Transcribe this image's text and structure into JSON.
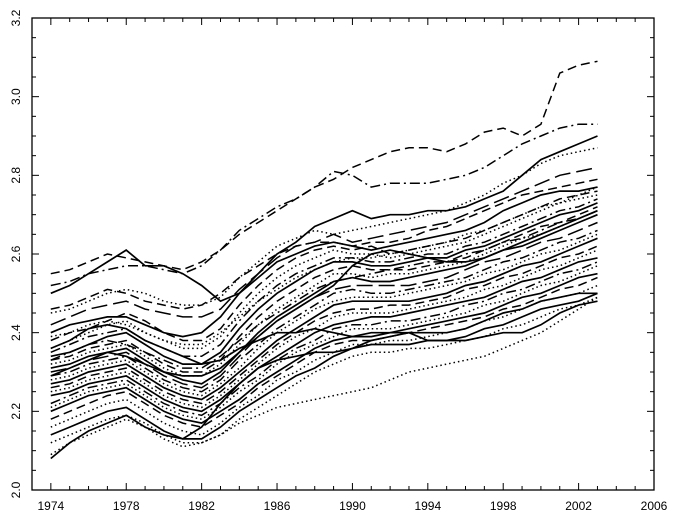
{
  "chart_data": {
    "type": "line",
    "title": "",
    "xlabel": "",
    "ylabel": "",
    "xlim": [
      1973,
      2006
    ],
    "ylim": [
      2.0,
      3.2
    ],
    "x_ticks": [
      "1974",
      "1978",
      "1982",
      "1986",
      "1990",
      "1994",
      "1998",
      "2002",
      "2006"
    ],
    "y_ticks": [
      "2.0",
      "2.2",
      "2.4",
      "2.6",
      "2.8",
      "3.0",
      "3.2"
    ],
    "x": [
      1974,
      1975,
      1976,
      1977,
      1978,
      1979,
      1980,
      1981,
      1982,
      1983,
      1984,
      1985,
      1986,
      1987,
      1988,
      1989,
      1990,
      1991,
      1992,
      1993,
      1994,
      1995,
      1996,
      1997,
      1998,
      1999,
      2000,
      2001,
      2002,
      2003
    ],
    "grid": false,
    "legend": "none",
    "series": [
      {
        "style": "dash",
        "values": [
          2.55,
          2.56,
          2.58,
          2.6,
          2.59,
          2.58,
          2.57,
          2.56,
          2.58,
          2.61,
          2.65,
          2.68,
          2.71,
          2.74,
          2.77,
          2.79,
          2.82,
          2.84,
          2.86,
          2.87,
          2.87,
          2.86,
          2.88,
          2.91,
          2.92,
          2.9,
          2.93,
          3.06,
          3.08,
          3.09
        ]
      },
      {
        "style": "dashdot",
        "values": [
          2.52,
          2.53,
          2.55,
          2.56,
          2.57,
          2.57,
          2.56,
          2.55,
          2.57,
          2.61,
          2.66,
          2.69,
          2.72,
          2.74,
          2.77,
          2.81,
          2.8,
          2.77,
          2.78,
          2.78,
          2.78,
          2.79,
          2.8,
          2.82,
          2.85,
          2.88,
          2.9,
          2.92,
          2.93,
          2.93
        ]
      },
      {
        "style": "solid",
        "values": [
          2.5,
          2.52,
          2.55,
          2.58,
          2.61,
          2.57,
          2.57,
          2.55,
          2.52,
          2.48,
          2.5,
          2.55,
          2.6,
          2.63,
          2.67,
          2.69,
          2.71,
          2.69,
          2.7,
          2.7,
          2.71,
          2.71,
          2.72,
          2.74,
          2.76,
          2.8,
          2.84,
          2.86,
          2.88,
          2.9
        ]
      },
      {
        "style": "dot",
        "values": [
          2.45,
          2.46,
          2.48,
          2.5,
          2.51,
          2.5,
          2.48,
          2.47,
          2.47,
          2.49,
          2.54,
          2.58,
          2.62,
          2.64,
          2.66,
          2.65,
          2.66,
          2.67,
          2.68,
          2.69,
          2.7,
          2.71,
          2.73,
          2.75,
          2.78,
          2.8,
          2.83,
          2.85,
          2.86,
          2.87
        ]
      },
      {
        "style": "longdash",
        "values": [
          2.42,
          2.44,
          2.46,
          2.47,
          2.48,
          2.46,
          2.45,
          2.44,
          2.44,
          2.46,
          2.51,
          2.55,
          2.59,
          2.62,
          2.63,
          2.65,
          2.63,
          2.64,
          2.65,
          2.66,
          2.67,
          2.68,
          2.7,
          2.72,
          2.74,
          2.76,
          2.78,
          2.8,
          2.81,
          2.82
        ]
      },
      {
        "style": "solid",
        "values": [
          2.4,
          2.42,
          2.43,
          2.44,
          2.44,
          2.42,
          2.4,
          2.39,
          2.4,
          2.44,
          2.5,
          2.54,
          2.58,
          2.6,
          2.62,
          2.63,
          2.62,
          2.61,
          2.62,
          2.63,
          2.64,
          2.65,
          2.66,
          2.68,
          2.71,
          2.73,
          2.75,
          2.76,
          2.76,
          2.77
        ]
      },
      {
        "style": "dash",
        "values": [
          2.38,
          2.4,
          2.41,
          2.43,
          2.45,
          2.43,
          2.4,
          2.38,
          2.38,
          2.41,
          2.47,
          2.52,
          2.56,
          2.59,
          2.61,
          2.62,
          2.61,
          2.62,
          2.6,
          2.61,
          2.62,
          2.63,
          2.64,
          2.66,
          2.68,
          2.7,
          2.72,
          2.74,
          2.75,
          2.76
        ]
      },
      {
        "style": "dot",
        "values": [
          2.36,
          2.38,
          2.4,
          2.42,
          2.43,
          2.4,
          2.38,
          2.36,
          2.36,
          2.39,
          2.45,
          2.5,
          2.54,
          2.57,
          2.59,
          2.61,
          2.6,
          2.6,
          2.59,
          2.6,
          2.61,
          2.62,
          2.63,
          2.65,
          2.67,
          2.69,
          2.71,
          2.73,
          2.74,
          2.75
        ]
      },
      {
        "style": "dashdot",
        "values": [
          2.35,
          2.37,
          2.39,
          2.4,
          2.41,
          2.38,
          2.36,
          2.34,
          2.34,
          2.37,
          2.43,
          2.48,
          2.52,
          2.55,
          2.57,
          2.59,
          2.59,
          2.58,
          2.58,
          2.59,
          2.6,
          2.6,
          2.62,
          2.63,
          2.65,
          2.67,
          2.69,
          2.71,
          2.72,
          2.74
        ]
      },
      {
        "style": "solid",
        "values": [
          2.34,
          2.35,
          2.37,
          2.39,
          2.4,
          2.37,
          2.34,
          2.32,
          2.32,
          2.35,
          2.41,
          2.46,
          2.5,
          2.53,
          2.56,
          2.58,
          2.58,
          2.57,
          2.57,
          2.58,
          2.59,
          2.59,
          2.61,
          2.62,
          2.64,
          2.66,
          2.68,
          2.7,
          2.71,
          2.73
        ]
      },
      {
        "style": "dash",
        "values": [
          2.33,
          2.34,
          2.36,
          2.37,
          2.38,
          2.35,
          2.32,
          2.3,
          2.3,
          2.33,
          2.39,
          2.44,
          2.48,
          2.51,
          2.54,
          2.56,
          2.57,
          2.56,
          2.56,
          2.56,
          2.57,
          2.58,
          2.59,
          2.61,
          2.63,
          2.65,
          2.67,
          2.68,
          2.7,
          2.72
        ]
      },
      {
        "style": "dot",
        "values": [
          2.32,
          2.33,
          2.35,
          2.36,
          2.37,
          2.34,
          2.31,
          2.29,
          2.29,
          2.32,
          2.37,
          2.42,
          2.46,
          2.49,
          2.52,
          2.55,
          2.55,
          2.54,
          2.55,
          2.55,
          2.56,
          2.57,
          2.58,
          2.6,
          2.62,
          2.64,
          2.65,
          2.67,
          2.69,
          2.71
        ]
      },
      {
        "style": "solid",
        "values": [
          2.31,
          2.32,
          2.34,
          2.35,
          2.36,
          2.33,
          2.3,
          2.28,
          2.27,
          2.3,
          2.35,
          2.4,
          2.44,
          2.47,
          2.5,
          2.53,
          2.54,
          2.53,
          2.53,
          2.54,
          2.55,
          2.56,
          2.57,
          2.59,
          2.61,
          2.62,
          2.64,
          2.66,
          2.68,
          2.7
        ]
      },
      {
        "style": "longdash",
        "values": [
          2.3,
          2.31,
          2.33,
          2.34,
          2.35,
          2.32,
          2.29,
          2.27,
          2.26,
          2.29,
          2.34,
          2.39,
          2.43,
          2.46,
          2.49,
          2.51,
          2.52,
          2.52,
          2.52,
          2.52,
          2.53,
          2.54,
          2.56,
          2.58,
          2.59,
          2.61,
          2.63,
          2.64,
          2.66,
          2.68
        ]
      },
      {
        "style": "dashdot",
        "values": [
          2.29,
          2.3,
          2.32,
          2.33,
          2.34,
          2.31,
          2.28,
          2.26,
          2.25,
          2.28,
          2.33,
          2.37,
          2.41,
          2.44,
          2.47,
          2.5,
          2.51,
          2.5,
          2.5,
          2.51,
          2.52,
          2.53,
          2.54,
          2.56,
          2.58,
          2.59,
          2.61,
          2.63,
          2.64,
          2.66
        ]
      },
      {
        "style": "dot",
        "values": [
          2.28,
          2.29,
          2.31,
          2.32,
          2.33,
          2.3,
          2.27,
          2.25,
          2.24,
          2.27,
          2.31,
          2.36,
          2.4,
          2.43,
          2.46,
          2.48,
          2.49,
          2.49,
          2.49,
          2.5,
          2.51,
          2.52,
          2.53,
          2.55,
          2.56,
          2.58,
          2.6,
          2.61,
          2.63,
          2.65
        ]
      },
      {
        "style": "solid",
        "values": [
          2.27,
          2.28,
          2.3,
          2.31,
          2.32,
          2.29,
          2.26,
          2.24,
          2.23,
          2.26,
          2.3,
          2.34,
          2.38,
          2.41,
          2.44,
          2.47,
          2.48,
          2.48,
          2.48,
          2.48,
          2.49,
          2.5,
          2.52,
          2.53,
          2.55,
          2.57,
          2.58,
          2.6,
          2.62,
          2.64
        ]
      },
      {
        "style": "dash",
        "values": [
          2.26,
          2.27,
          2.29,
          2.3,
          2.31,
          2.28,
          2.25,
          2.23,
          2.22,
          2.25,
          2.29,
          2.33,
          2.37,
          2.4,
          2.43,
          2.45,
          2.46,
          2.46,
          2.47,
          2.47,
          2.48,
          2.49,
          2.51,
          2.52,
          2.54,
          2.55,
          2.57,
          2.59,
          2.6,
          2.62
        ]
      },
      {
        "style": "dot",
        "values": [
          2.25,
          2.26,
          2.28,
          2.29,
          2.3,
          2.27,
          2.24,
          2.22,
          2.21,
          2.24,
          2.28,
          2.32,
          2.36,
          2.39,
          2.41,
          2.44,
          2.45,
          2.45,
          2.45,
          2.46,
          2.47,
          2.48,
          2.49,
          2.51,
          2.52,
          2.54,
          2.56,
          2.57,
          2.59,
          2.61
        ]
      },
      {
        "style": "solid",
        "values": [
          2.24,
          2.25,
          2.27,
          2.28,
          2.29,
          2.26,
          2.23,
          2.21,
          2.2,
          2.23,
          2.27,
          2.31,
          2.34,
          2.37,
          2.4,
          2.42,
          2.43,
          2.44,
          2.44,
          2.45,
          2.46,
          2.47,
          2.48,
          2.49,
          2.51,
          2.53,
          2.54,
          2.56,
          2.58,
          2.59
        ]
      },
      {
        "style": "dashdot",
        "values": [
          2.22,
          2.24,
          2.26,
          2.27,
          2.28,
          2.25,
          2.22,
          2.2,
          2.19,
          2.22,
          2.26,
          2.29,
          2.33,
          2.36,
          2.38,
          2.41,
          2.42,
          2.42,
          2.43,
          2.43,
          2.44,
          2.45,
          2.47,
          2.48,
          2.5,
          2.51,
          2.53,
          2.55,
          2.56,
          2.58
        ]
      },
      {
        "style": "dot",
        "values": [
          2.21,
          2.23,
          2.25,
          2.26,
          2.27,
          2.24,
          2.21,
          2.19,
          2.18,
          2.21,
          2.25,
          2.28,
          2.32,
          2.35,
          2.37,
          2.39,
          2.41,
          2.41,
          2.41,
          2.42,
          2.43,
          2.44,
          2.45,
          2.47,
          2.48,
          2.5,
          2.52,
          2.53,
          2.55,
          2.57
        ]
      },
      {
        "style": "solid",
        "values": [
          2.2,
          2.22,
          2.24,
          2.25,
          2.26,
          2.23,
          2.2,
          2.18,
          2.17,
          2.2,
          2.23,
          2.27,
          2.3,
          2.33,
          2.36,
          2.38,
          2.39,
          2.4,
          2.4,
          2.41,
          2.42,
          2.43,
          2.44,
          2.45,
          2.47,
          2.49,
          2.5,
          2.52,
          2.54,
          2.55
        ]
      },
      {
        "style": "dash",
        "values": [
          2.18,
          2.2,
          2.22,
          2.24,
          2.25,
          2.22,
          2.19,
          2.17,
          2.16,
          2.19,
          2.22,
          2.26,
          2.29,
          2.32,
          2.35,
          2.37,
          2.38,
          2.38,
          2.39,
          2.4,
          2.41,
          2.42,
          2.43,
          2.44,
          2.46,
          2.47,
          2.49,
          2.51,
          2.52,
          2.54
        ]
      },
      {
        "style": "dot",
        "values": [
          2.16,
          2.18,
          2.2,
          2.22,
          2.23,
          2.2,
          2.17,
          2.15,
          2.14,
          2.17,
          2.21,
          2.24,
          2.28,
          2.3,
          2.33,
          2.35,
          2.37,
          2.37,
          2.38,
          2.38,
          2.39,
          2.4,
          2.41,
          2.43,
          2.44,
          2.46,
          2.48,
          2.49,
          2.5,
          2.52
        ]
      },
      {
        "style": "solid",
        "values": [
          2.14,
          2.16,
          2.18,
          2.2,
          2.21,
          2.18,
          2.15,
          2.13,
          2.13,
          2.16,
          2.2,
          2.23,
          2.26,
          2.29,
          2.31,
          2.34,
          2.36,
          2.37,
          2.37,
          2.37,
          2.38,
          2.38,
          2.39,
          2.41,
          2.42,
          2.44,
          2.46,
          2.47,
          2.48,
          2.5
        ]
      },
      {
        "style": "dot",
        "values": [
          2.12,
          2.14,
          2.16,
          2.18,
          2.19,
          2.17,
          2.14,
          2.12,
          2.12,
          2.14,
          2.18,
          2.21,
          2.24,
          2.27,
          2.3,
          2.32,
          2.34,
          2.35,
          2.35,
          2.36,
          2.36,
          2.37,
          2.38,
          2.39,
          2.41,
          2.42,
          2.44,
          2.46,
          2.47,
          2.49
        ]
      },
      {
        "style": "solid",
        "values": [
          2.08,
          2.12,
          2.15,
          2.17,
          2.19,
          2.16,
          2.14,
          2.13,
          2.16,
          2.22,
          2.27,
          2.31,
          2.33,
          2.34,
          2.35,
          2.35,
          2.36,
          2.38,
          2.39,
          2.4,
          2.4,
          2.4,
          2.41,
          2.43,
          2.45,
          2.46,
          2.48,
          2.49,
          2.5,
          2.5
        ]
      },
      {
        "style": "dot",
        "values": [
          2.09,
          2.12,
          2.14,
          2.16,
          2.18,
          2.16,
          2.13,
          2.11,
          2.12,
          2.14,
          2.17,
          2.19,
          2.21,
          2.22,
          2.23,
          2.24,
          2.25,
          2.26,
          2.28,
          2.3,
          2.31,
          2.32,
          2.33,
          2.34,
          2.36,
          2.38,
          2.4,
          2.43,
          2.46,
          2.49
        ]
      },
      {
        "style": "solid",
        "values": [
          2.36,
          2.38,
          2.41,
          2.42,
          2.41,
          2.38,
          2.36,
          2.34,
          2.32,
          2.33,
          2.36,
          2.38,
          2.4,
          2.4,
          2.41,
          2.4,
          2.39,
          2.39,
          2.4,
          2.4,
          2.38,
          2.38,
          2.38,
          2.39,
          2.4,
          2.4,
          2.42,
          2.45,
          2.47,
          2.48
        ]
      },
      {
        "style": "dash",
        "values": [
          2.46,
          2.47,
          2.49,
          2.51,
          2.5,
          2.48,
          2.47,
          2.46,
          2.47,
          2.5,
          2.54,
          2.57,
          2.6,
          2.62,
          2.63,
          2.63,
          2.62,
          2.63,
          2.63,
          2.64,
          2.66,
          2.67,
          2.69,
          2.71,
          2.73,
          2.75,
          2.76,
          2.77,
          2.78,
          2.79
        ]
      },
      {
        "style": "solid",
        "values": [
          2.29,
          2.31,
          2.33,
          2.35,
          2.34,
          2.32,
          2.3,
          2.29,
          2.29,
          2.31,
          2.35,
          2.39,
          2.43,
          2.46,
          2.49,
          2.52,
          2.57,
          2.6,
          2.61,
          2.6,
          2.59,
          2.58,
          2.58,
          2.59,
          2.61,
          2.63,
          2.65,
          2.67,
          2.69,
          2.71
        ]
      },
      {
        "style": "dashdot",
        "values": [
          2.33,
          2.35,
          2.37,
          2.38,
          2.37,
          2.35,
          2.33,
          2.31,
          2.31,
          2.34,
          2.38,
          2.42,
          2.45,
          2.48,
          2.51,
          2.53,
          2.54,
          2.55,
          2.56,
          2.57,
          2.58,
          2.58,
          2.6,
          2.61,
          2.63,
          2.64,
          2.66,
          2.68,
          2.69,
          2.71
        ]
      },
      {
        "style": "dot",
        "values": [
          2.39,
          2.4,
          2.42,
          2.43,
          2.42,
          2.4,
          2.38,
          2.37,
          2.37,
          2.4,
          2.44,
          2.48,
          2.51,
          2.54,
          2.56,
          2.58,
          2.59,
          2.59,
          2.6,
          2.61,
          2.62,
          2.63,
          2.65,
          2.66,
          2.68,
          2.7,
          2.72,
          2.73,
          2.75,
          2.77
        ]
      }
    ]
  }
}
